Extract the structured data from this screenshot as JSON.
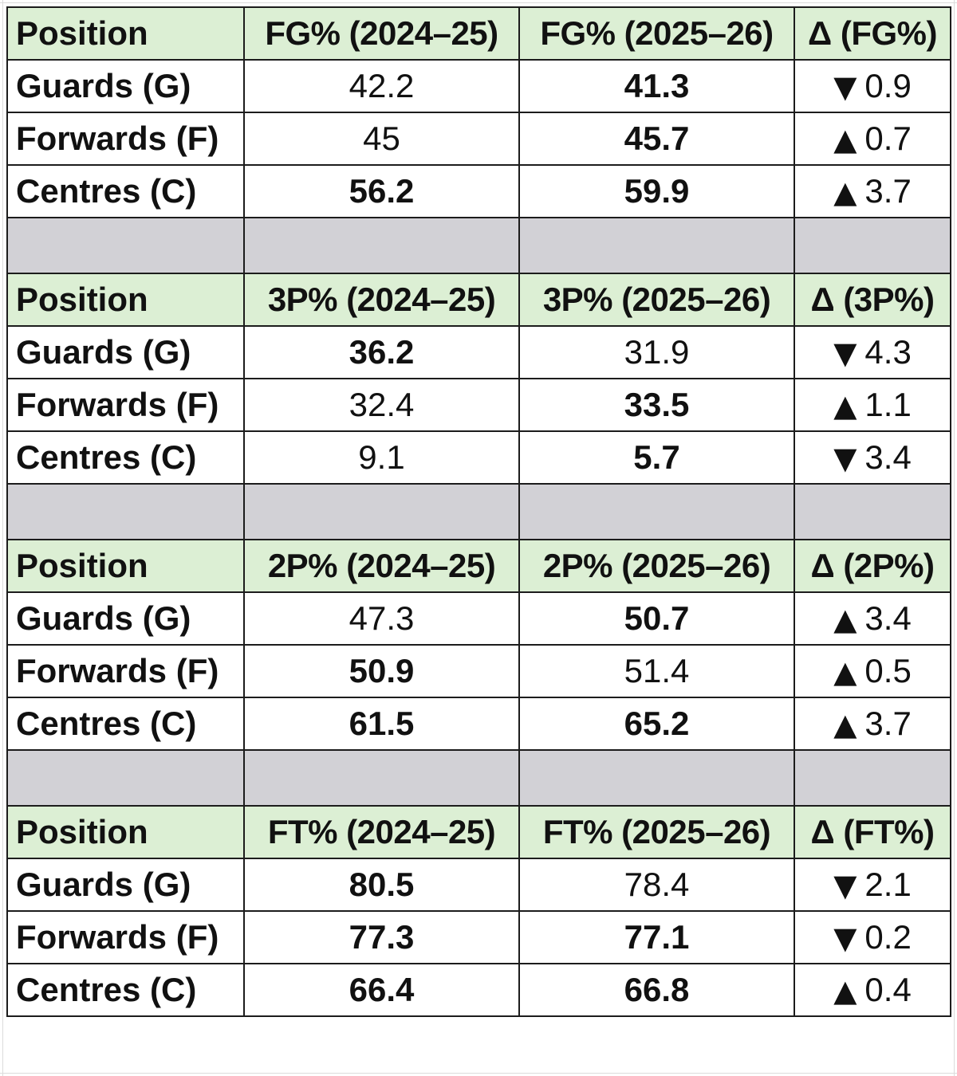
{
  "sections": [
    {
      "headers": [
        "Position",
        "FG% (2024–25)",
        "FG% (2025–26)",
        "Δ (FG%)"
      ],
      "rows": [
        {
          "position": "Guards (G)",
          "v1": "42.2",
          "v1_bold": false,
          "v2": "41.3",
          "v2_bold": true,
          "dir": "down",
          "delta": "0.9"
        },
        {
          "position": "Forwards (F)",
          "v1": "45",
          "v1_bold": false,
          "v2": "45.7",
          "v2_bold": true,
          "dir": "up",
          "delta": "0.7"
        },
        {
          "position": "Centres (C)",
          "v1": "56.2",
          "v1_bold": true,
          "v2": "59.9",
          "v2_bold": true,
          "dir": "up",
          "delta": "3.7"
        }
      ]
    },
    {
      "headers": [
        "Position",
        "3P% (2024–25)",
        "3P% (2025–26)",
        "Δ (3P%)"
      ],
      "rows": [
        {
          "position": "Guards (G)",
          "v1": "36.2",
          "v1_bold": true,
          "v2": "31.9",
          "v2_bold": false,
          "dir": "down",
          "delta": "4.3"
        },
        {
          "position": "Forwards (F)",
          "v1": "32.4",
          "v1_bold": false,
          "v2": "33.5",
          "v2_bold": true,
          "dir": "up",
          "delta": "1.1"
        },
        {
          "position": "Centres (C)",
          "v1": "9.1",
          "v1_bold": false,
          "v2": "5.7",
          "v2_bold": true,
          "dir": "down",
          "delta": "3.4"
        }
      ]
    },
    {
      "headers": [
        "Position",
        "2P% (2024–25)",
        "2P% (2025–26)",
        "Δ (2P%)"
      ],
      "rows": [
        {
          "position": "Guards (G)",
          "v1": "47.3",
          "v1_bold": false,
          "v2": "50.7",
          "v2_bold": true,
          "dir": "up",
          "delta": "3.4"
        },
        {
          "position": "Forwards (F)",
          "v1": "50.9",
          "v1_bold": true,
          "v2": "51.4",
          "v2_bold": false,
          "dir": "up",
          "delta": "0.5"
        },
        {
          "position": "Centres (C)",
          "v1": "61.5",
          "v1_bold": true,
          "v2": "65.2",
          "v2_bold": true,
          "dir": "up",
          "delta": "3.7"
        }
      ]
    },
    {
      "headers": [
        "Position",
        "FT% (2024–25)",
        "FT% (2025–26)",
        "Δ (FT%)"
      ],
      "rows": [
        {
          "position": "Guards (G)",
          "v1": "80.5",
          "v1_bold": true,
          "v2": "78.4",
          "v2_bold": false,
          "dir": "down",
          "delta": "2.1"
        },
        {
          "position": "Forwards (F)",
          "v1": "77.3",
          "v1_bold": true,
          "v2": "77.1",
          "v2_bold": true,
          "dir": "down",
          "delta": "0.2"
        },
        {
          "position": "Centres (C)",
          "v1": "66.4",
          "v1_bold": true,
          "v2": "66.8",
          "v2_bold": true,
          "dir": "up",
          "delta": "0.4"
        }
      ]
    }
  ],
  "arrows": {
    "up": "▲",
    "down": "▼"
  },
  "colors": {
    "header_bg": "#dcefd4",
    "spacer_bg": "#d2d1d6",
    "border": "#1c1c1c"
  },
  "icons": {
    "up": "triangle-up-icon",
    "down": "triangle-down-icon"
  }
}
